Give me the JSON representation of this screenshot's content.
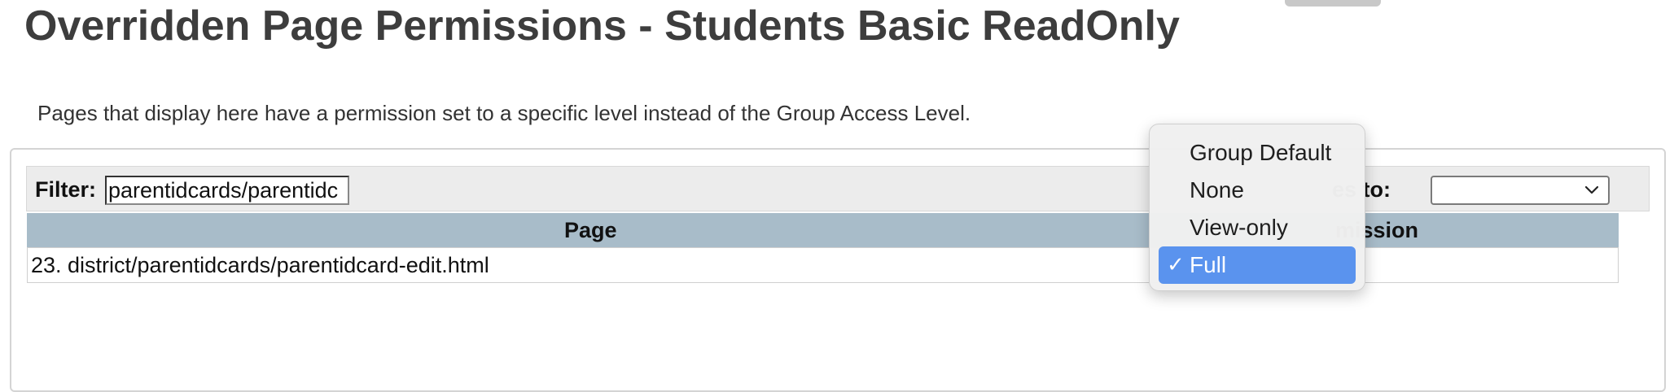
{
  "page": {
    "title": "Overridden Page Permissions - Students Basic ReadOnly",
    "description": "Pages that display here have a permission set to a specific level instead of the Group Access Level."
  },
  "filter": {
    "label": "Filter:",
    "value": "parentidcards/parentidc"
  },
  "applies_to": {
    "label": "es to:",
    "selected": ""
  },
  "table": {
    "columns": [
      "Page",
      "mission"
    ],
    "rows": [
      {
        "page": "23. district/parentidcards/parentidcard-edit.html"
      }
    ]
  },
  "permission_dropdown": {
    "options": [
      "Group Default",
      "None",
      "View-only",
      "Full"
    ],
    "selected": "Full",
    "check_glyph": "✓"
  },
  "colors": {
    "header_bg": "#a8bcc9",
    "selection_blue": "#5a93ee",
    "title_text": "#3d3d3d"
  }
}
